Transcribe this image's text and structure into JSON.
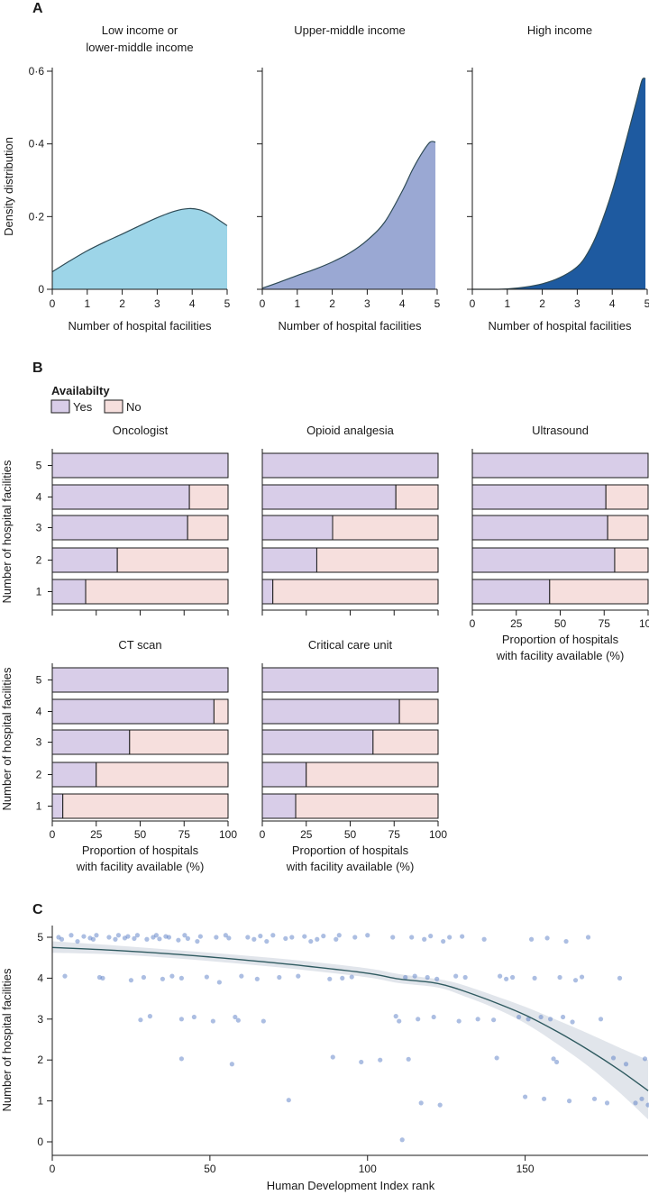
{
  "panel_a": {
    "label": "A",
    "ylabel": "Density distribution",
    "xlabel": "Number of hospital facilities",
    "y_ticks": [
      "0",
      "0·2",
      "0·4",
      "0·6"
    ],
    "x_ticks": [
      "0",
      "1",
      "2",
      "3",
      "4",
      "5"
    ]
  },
  "panel_b": {
    "label": "B",
    "legend_title": "Availabilty",
    "legend_yes": "Yes",
    "legend_no": "No",
    "ylabel": "Number of hospital facilities",
    "xlabel_line1": "Proportion of hospitals",
    "xlabel_line2": "with facility available (%)",
    "x_ticks": [
      "0",
      "25",
      "50",
      "75",
      "100"
    ],
    "y_ticks": [
      "1",
      "2",
      "3",
      "4",
      "5"
    ]
  },
  "panel_c": {
    "label": "C",
    "ylabel": "Number of hospital facilities",
    "xlabel": "Human Development Index rank",
    "x_ticks": [
      "0",
      "50",
      "100",
      "150"
    ],
    "y_ticks": [
      "0",
      "1",
      "2",
      "3",
      "4",
      "5"
    ]
  },
  "colors": {
    "low": "#9dd5e8",
    "upper": "#9aa8d3",
    "high": "#1e5aa0",
    "yes": "#d8cde8",
    "no": "#f6dfdd",
    "point": "#5a7ec6",
    "trend": "#2f5a60",
    "band": "#dfe4ea"
  },
  "chart_data": [
    {
      "type": "area",
      "panel": "A",
      "title": "Low income or lower-middle income",
      "title_lines": [
        "Low income or",
        "lower-middle income"
      ],
      "xlabel": "Number of hospital facilities",
      "ylabel": "Density distribution",
      "xlim": [
        0,
        5
      ],
      "ylim": [
        0,
        0.6
      ],
      "x": [
        0,
        0.5,
        1,
        1.5,
        2,
        2.5,
        3,
        3.5,
        3.9,
        4.2,
        4.5,
        4.8,
        5
      ],
      "y": [
        0.048,
        0.078,
        0.106,
        0.13,
        0.152,
        0.175,
        0.197,
        0.215,
        0.222,
        0.219,
        0.207,
        0.188,
        0.175
      ]
    },
    {
      "type": "area",
      "panel": "A",
      "title": "Upper-middle income",
      "title_lines": [
        "Upper-middle income"
      ],
      "xlabel": "Number of hospital facilities",
      "xlim": [
        0,
        5
      ],
      "ylim": [
        0,
        0.6
      ],
      "x": [
        0,
        0.5,
        1,
        1.5,
        2,
        2.5,
        3,
        3.5,
        4,
        4.3,
        4.6,
        4.8,
        4.95
      ],
      "y": [
        0.003,
        0.02,
        0.038,
        0.055,
        0.075,
        0.1,
        0.135,
        0.185,
        0.27,
        0.33,
        0.38,
        0.405,
        0.405
      ]
    },
    {
      "type": "area",
      "panel": "A",
      "title": "High income",
      "title_lines": [
        "High income"
      ],
      "xlabel": "Number of hospital facilities",
      "xlim": [
        0,
        5
      ],
      "ylim": [
        0,
        0.6
      ],
      "x": [
        0,
        0.5,
        1,
        1.5,
        2,
        2.5,
        3,
        3.3,
        3.6,
        4,
        4.4,
        4.7,
        4.85,
        4.95
      ],
      "y": [
        0,
        0,
        0.001,
        0.006,
        0.015,
        0.032,
        0.062,
        0.1,
        0.16,
        0.27,
        0.41,
        0.52,
        0.575,
        0.58
      ]
    },
    {
      "type": "bar",
      "panel": "B",
      "orientation": "horizontal-stacked",
      "title": "Oncologist",
      "categories": [
        "1",
        "2",
        "3",
        "4",
        "5"
      ],
      "series": [
        {
          "name": "Yes",
          "values": [
            19,
            37,
            77,
            78,
            100
          ]
        },
        {
          "name": "No",
          "values": [
            81,
            63,
            23,
            22,
            0
          ]
        }
      ],
      "xlim": [
        0,
        100
      ]
    },
    {
      "type": "bar",
      "panel": "B",
      "orientation": "horizontal-stacked",
      "title": "Opioid analgesia",
      "categories": [
        "1",
        "2",
        "3",
        "4",
        "5"
      ],
      "series": [
        {
          "name": "Yes",
          "values": [
            6,
            31,
            40,
            76,
            100
          ]
        },
        {
          "name": "No",
          "values": [
            94,
            69,
            60,
            24,
            0
          ]
        }
      ],
      "xlim": [
        0,
        100
      ]
    },
    {
      "type": "bar",
      "panel": "B",
      "orientation": "horizontal-stacked",
      "title": "Ultrasound",
      "categories": [
        "1",
        "2",
        "3",
        "4",
        "5"
      ],
      "series": [
        {
          "name": "Yes",
          "values": [
            44,
            81,
            77,
            76,
            100
          ]
        },
        {
          "name": "No",
          "values": [
            56,
            19,
            23,
            24,
            0
          ]
        }
      ],
      "xlim": [
        0,
        100
      ]
    },
    {
      "type": "bar",
      "panel": "B",
      "orientation": "horizontal-stacked",
      "title": "CT scan",
      "categories": [
        "1",
        "2",
        "3",
        "4",
        "5"
      ],
      "series": [
        {
          "name": "Yes",
          "values": [
            6,
            25,
            44,
            92,
            100
          ]
        },
        {
          "name": "No",
          "values": [
            94,
            75,
            56,
            8,
            0
          ]
        }
      ],
      "xlim": [
        0,
        100
      ]
    },
    {
      "type": "bar",
      "panel": "B",
      "orientation": "horizontal-stacked",
      "title": "Critical care unit",
      "categories": [
        "1",
        "2",
        "3",
        "4",
        "5"
      ],
      "series": [
        {
          "name": "Yes",
          "values": [
            19,
            25,
            63,
            78,
            100
          ]
        },
        {
          "name": "No",
          "values": [
            81,
            75,
            37,
            22,
            0
          ]
        }
      ],
      "xlim": [
        0,
        100
      ]
    },
    {
      "type": "scatter",
      "panel": "C",
      "xlabel": "Human Development Index rank",
      "ylabel": "Number of hospital facilities",
      "xlim": [
        0,
        189
      ],
      "ylim": [
        -0.2,
        5.3
      ],
      "points": [
        [
          2,
          5
        ],
        [
          3,
          4.95
        ],
        [
          4,
          4.05
        ],
        [
          6,
          5.05
        ],
        [
          8,
          4.9
        ],
        [
          10,
          5.02
        ],
        [
          12,
          4.98
        ],
        [
          13,
          4.95
        ],
        [
          14,
          5.05
        ],
        [
          15,
          4.02
        ],
        [
          16,
          4.0
        ],
        [
          18,
          5.0
        ],
        [
          20,
          4.95
        ],
        [
          21,
          5.05
        ],
        [
          23,
          4.98
        ],
        [
          24,
          5.02
        ],
        [
          25,
          3.95
        ],
        [
          26,
          4.97
        ],
        [
          27,
          5.05
        ],
        [
          28,
          2.98
        ],
        [
          29,
          4.02
        ],
        [
          30,
          4.95
        ],
        [
          31,
          3.07
        ],
        [
          32,
          5.0
        ],
        [
          33,
          5.05
        ],
        [
          34,
          4.96
        ],
        [
          35,
          3.98
        ],
        [
          36,
          5.02
        ],
        [
          37,
          5.0
        ],
        [
          38,
          4.05
        ],
        [
          40,
          4.93
        ],
        [
          41,
          3.0
        ],
        [
          41,
          4.0
        ],
        [
          41,
          2.03
        ],
        [
          42,
          5.05
        ],
        [
          43,
          4.97
        ],
        [
          45,
          3.05
        ],
        [
          46,
          4.9
        ],
        [
          47,
          5.02
        ],
        [
          49,
          4.03
        ],
        [
          51,
          2.95
        ],
        [
          52,
          5.0
        ],
        [
          53,
          3.9
        ],
        [
          55,
          5.05
        ],
        [
          56,
          4.98
        ],
        [
          57,
          1.9
        ],
        [
          58,
          3.05
        ],
        [
          59,
          2.97
        ],
        [
          60,
          4.05
        ],
        [
          62,
          5.0
        ],
        [
          64,
          4.95
        ],
        [
          65,
          3.98
        ],
        [
          66,
          5.03
        ],
        [
          67,
          2.95
        ],
        [
          68,
          4.9
        ],
        [
          70,
          5.05
        ],
        [
          72,
          4.02
        ],
        [
          74,
          4.97
        ],
        [
          75,
          1.02
        ],
        [
          76,
          5.0
        ],
        [
          78,
          4.05
        ],
        [
          80,
          5.02
        ],
        [
          82,
          4.9
        ],
        [
          84,
          4.95
        ],
        [
          86,
          5.03
        ],
        [
          88,
          3.98
        ],
        [
          89,
          2.07
        ],
        [
          90,
          4.95
        ],
        [
          91,
          5.05
        ],
        [
          92,
          4.0
        ],
        [
          95,
          4.03
        ],
        [
          96,
          5.0
        ],
        [
          98,
          1.95
        ],
        [
          100,
          5.05
        ],
        [
          104,
          2.0
        ],
        [
          108,
          5.0
        ],
        [
          109,
          3.07
        ],
        [
          110,
          2.95
        ],
        [
          111,
          0.05
        ],
        [
          112,
          4.02
        ],
        [
          113,
          2.02
        ],
        [
          114,
          5.0
        ],
        [
          115,
          4.05
        ],
        [
          116,
          3.0
        ],
        [
          117,
          0.95
        ],
        [
          118,
          4.95
        ],
        [
          119,
          4.02
        ],
        [
          120,
          5.03
        ],
        [
          121,
          3.05
        ],
        [
          122,
          3.98
        ],
        [
          123,
          0.9
        ],
        [
          124,
          4.9
        ],
        [
          126,
          5.0
        ],
        [
          128,
          4.05
        ],
        [
          129,
          2.95
        ],
        [
          130,
          5.02
        ],
        [
          131,
          4.02
        ],
        [
          135,
          3.0
        ],
        [
          137,
          4.95
        ],
        [
          140,
          2.98
        ],
        [
          141,
          2.05
        ],
        [
          142,
          4.05
        ],
        [
          144,
          3.98
        ],
        [
          146,
          4.02
        ],
        [
          148,
          3.05
        ],
        [
          150,
          1.1
        ],
        [
          151,
          3.0
        ],
        [
          152,
          4.95
        ],
        [
          153,
          4.0
        ],
        [
          155,
          3.05
        ],
        [
          156,
          1.05
        ],
        [
          157,
          4.98
        ],
        [
          158,
          3.0
        ],
        [
          159,
          2.03
        ],
        [
          160,
          1.95
        ],
        [
          161,
          4.02
        ],
        [
          162,
          3.05
        ],
        [
          163,
          4.9
        ],
        [
          164,
          1.0
        ],
        [
          165,
          2.93
        ],
        [
          166,
          3.95
        ],
        [
          168,
          4.03
        ],
        [
          170,
          5.0
        ],
        [
          172,
          1.05
        ],
        [
          174,
          3.0
        ],
        [
          176,
          0.95
        ],
        [
          178,
          2.05
        ],
        [
          180,
          4.0
        ],
        [
          182,
          1.9
        ],
        [
          185,
          0.95
        ],
        [
          187,
          1.05
        ],
        [
          188,
          2.03
        ],
        [
          189,
          0.9
        ]
      ],
      "trend": {
        "x": [
          0,
          20,
          40,
          60,
          80,
          100,
          110,
          120,
          125,
          130,
          140,
          150,
          160,
          170,
          180,
          189
        ],
        "y": [
          4.75,
          4.68,
          4.58,
          4.45,
          4.3,
          4.12,
          3.98,
          3.9,
          3.82,
          3.7,
          3.42,
          3.1,
          2.7,
          2.25,
          1.75,
          1.25
        ],
        "ci_lower": [
          4.62,
          4.58,
          4.48,
          4.35,
          4.2,
          4.02,
          3.88,
          3.8,
          3.72,
          3.58,
          3.28,
          2.9,
          2.4,
          1.85,
          1.2,
          0.55
        ],
        "ci_upper": [
          4.9,
          4.8,
          4.68,
          4.56,
          4.42,
          4.24,
          4.1,
          4.0,
          3.94,
          3.84,
          3.58,
          3.3,
          2.98,
          2.65,
          2.3,
          2.0
        ]
      }
    }
  ]
}
